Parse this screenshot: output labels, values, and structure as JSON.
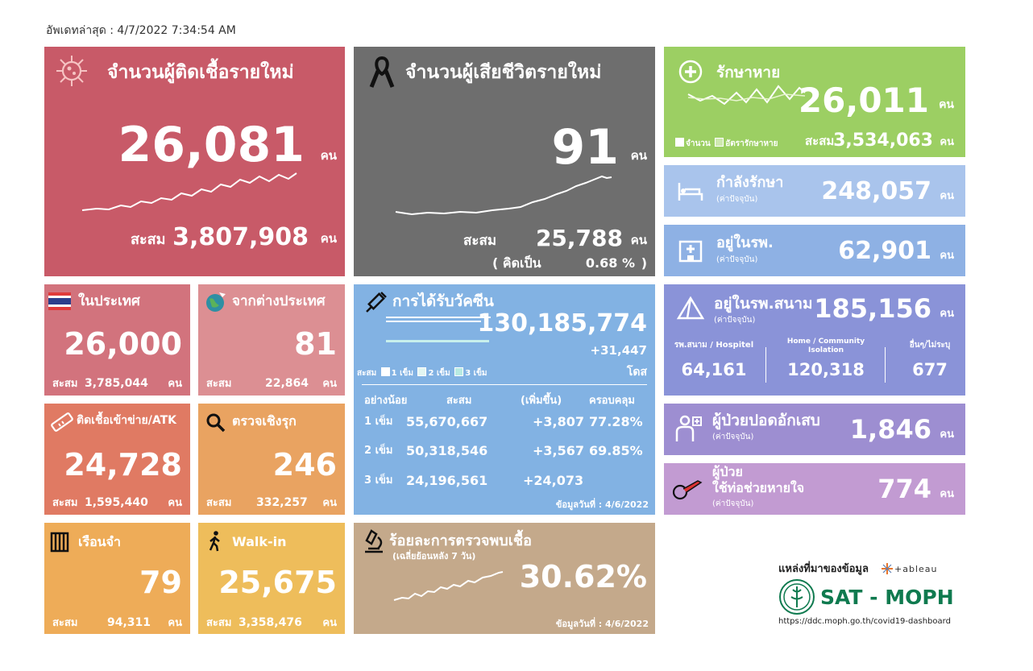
{
  "update": "อัพเดทล่าสุด : 4/7/2022 7:34:54 AM",
  "unit": "คน",
  "cum_label": "สะสม",
  "new_cases": {
    "title": "จำนวนผู้ติดเชื้อรายใหม่",
    "value": "26,081",
    "cum": "3,807,908"
  },
  "new_deaths": {
    "title": "จำนวนผู้เสียชีวิตรายใหม่",
    "value": "91",
    "cum": "25,788",
    "pct_open": "( คิดเป็น",
    "pct": "0.68 %",
    "pct_close": ")"
  },
  "recovered": {
    "title": "รักษาหาย",
    "value": "26,011",
    "legend_count": "จำนวน",
    "legend_rate": "อัตรารักษาหาย",
    "cum": "3,534,063"
  },
  "treating": {
    "title": "กำลังรักษา",
    "sub": "(ค่าปัจจุบัน)",
    "value": "248,057"
  },
  "hospital": {
    "title": "อยู่ในรพ.",
    "sub": "(ค่าปัจจุบัน)",
    "value": "62,901"
  },
  "field_hospital": {
    "title": "อยู่ในรพ.สนาม",
    "sub": "(ค่าปัจจุบัน)",
    "value": "185,156",
    "cols": [
      {
        "label": "รพ.สนาม / Hospitel",
        "value": "64,161"
      },
      {
        "label": "Home / Community Isolation",
        "value": "120,318"
      },
      {
        "label": "อื่นๆ/ไม่ระบุ",
        "value": "677"
      }
    ]
  },
  "pneumonia": {
    "title": "ผู้ป่วยปอดอักเสบ",
    "sub": "(ค่าปัจจุบัน)",
    "value": "1,846"
  },
  "ventilator": {
    "title1": "ผู้ป่วย",
    "title2": "ใช้ท่อช่วยหายใจ",
    "sub": "(ค่าปัจจุบัน)",
    "value": "774"
  },
  "domestic": {
    "title": "ในประเทศ",
    "value": "26,000",
    "cum": "3,785,044"
  },
  "abroad": {
    "title": "จากต่างประเทศ",
    "value": "81",
    "cum": "22,864"
  },
  "atk": {
    "title": "ติดเชื้อเข้าข่าย/ATK",
    "value": "24,728",
    "cum": "1,595,440"
  },
  "proactive": {
    "title": "ตรวจเชิงรุก",
    "value": "246",
    "cum": "332,257"
  },
  "prison": {
    "title": "เรือนจำ",
    "value": "79",
    "cum": "94,311"
  },
  "walkin": {
    "title": "Walk-in",
    "value": "25,675",
    "cum": "3,358,476"
  },
  "vaccine": {
    "title": "การได้รับวัคซีน",
    "total": "130,185,774",
    "increase": "+31,447",
    "unit": "โดส",
    "legend_prefix": "สะสม",
    "legend": [
      "1 เข็ม",
      "2 เข็ม",
      "3 เข็ม"
    ],
    "headers": [
      "อย่างน้อย",
      "สะสม",
      "(เพิ่มขึ้น)",
      "ครอบคลุม"
    ],
    "rows": [
      {
        "dose": "1 เข็ม",
        "cum": "55,670,667",
        "inc": "+3,807",
        "cov": "77.28%"
      },
      {
        "dose": "2 เข็ม",
        "cum": "50,318,546",
        "inc": "+3,567",
        "cov": "69.85%"
      },
      {
        "dose": "3 เข็ม",
        "cum": "24,196,561",
        "inc": "+24,073",
        "cov": ""
      }
    ],
    "date": "ข้อมูลวันที่ : 4/6/2022"
  },
  "positivity": {
    "title": "ร้อยละการตรวจพบเชื้อ",
    "sub": "(เฉลี่ยย้อนหลัง 7 วัน)",
    "value": "30.62%",
    "date": "ข้อมูลวันที่ : 4/6/2022"
  },
  "source": {
    "label": "แหล่งที่มาของข้อมูล",
    "tableau": "+ableau",
    "org": "SAT - MOPH",
    "url": "https://ddc.moph.go.th/covid19-dashboard"
  },
  "colors": {
    "cases": "#c85a68",
    "deaths": "#6e6e6e",
    "recovered": "#9ccf63",
    "treating": "#a9c4ec",
    "hospital": "#8eb1e4",
    "field": "#8a93d8",
    "pneumonia": "#9d8ed1",
    "ventilator": "#c29bd2",
    "domestic": "#d2737d",
    "abroad": "#dc8f93",
    "atk": "#e07a63",
    "proactive": "#e9a361",
    "prison": "#eeac58",
    "walkin": "#eebd5b",
    "vaccine": "#82b2e3",
    "positivity": "#c4a98b"
  }
}
